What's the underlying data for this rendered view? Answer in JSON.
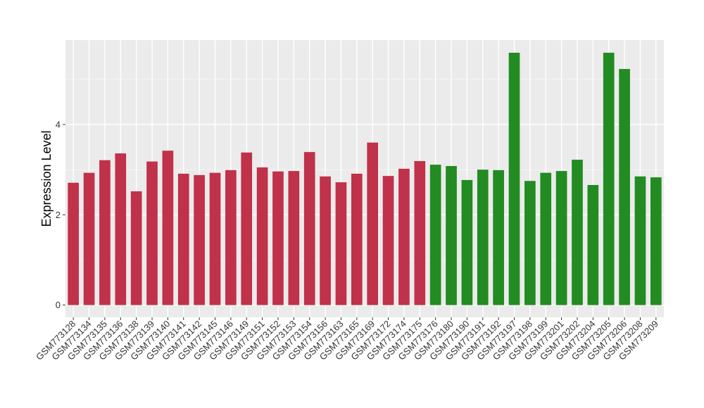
{
  "chart_data": {
    "type": "bar",
    "y_label": "Expression Level",
    "categories": [
      "GSM773128",
      "GSM773134",
      "GSM773135",
      "GSM773136",
      "GSM773138",
      "GSM773139",
      "GSM773140",
      "GSM773141",
      "GSM773142",
      "GSM773145",
      "GSM773146",
      "GSM773149",
      "GSM773151",
      "GSM773152",
      "GSM773153",
      "GSM773154",
      "GSM773156",
      "GSM773163",
      "GSM773165",
      "GSM773169",
      "GSM773172",
      "GSM773174",
      "GSM773175",
      "GSM773176",
      "GSM773180",
      "GSM773190",
      "GSM773191",
      "GSM773192",
      "GSM773197",
      "GSM773198",
      "GSM773199",
      "GSM773201",
      "GSM773202",
      "GSM773204",
      "GSM773205",
      "GSM773206",
      "GSM773208",
      "GSM773209"
    ],
    "values": [
      2.71,
      2.93,
      3.21,
      3.36,
      2.52,
      3.18,
      3.42,
      2.91,
      2.88,
      2.93,
      2.99,
      3.38,
      3.05,
      2.96,
      2.97,
      3.39,
      2.85,
      2.72,
      2.91,
      3.6,
      2.86,
      3.02,
      3.19,
      3.11,
      3.08,
      2.77,
      3.0,
      2.99,
      5.59,
      2.75,
      2.93,
      2.97,
      3.22,
      2.66,
      5.59,
      5.23,
      2.85,
      2.83
    ],
    "colors": [
      "#c0314a",
      "#c0314a",
      "#c0314a",
      "#c0314a",
      "#c0314a",
      "#c0314a",
      "#c0314a",
      "#c0314a",
      "#c0314a",
      "#c0314a",
      "#c0314a",
      "#c0314a",
      "#c0314a",
      "#c0314a",
      "#c0314a",
      "#c0314a",
      "#c0314a",
      "#c0314a",
      "#c0314a",
      "#c0314a",
      "#c0314a",
      "#c0314a",
      "#c0314a",
      "#228b22",
      "#228b22",
      "#228b22",
      "#228b22",
      "#228b22",
      "#228b22",
      "#228b22",
      "#228b22",
      "#228b22",
      "#228b22",
      "#228b22",
      "#228b22",
      "#228b22",
      "#228b22",
      "#228b22"
    ],
    "ylim": [
      -0.27,
      5.87
    ],
    "yticks": [
      0,
      2,
      4
    ],
    "minor_yticks": [
      1,
      3,
      5
    ],
    "grid": true
  }
}
